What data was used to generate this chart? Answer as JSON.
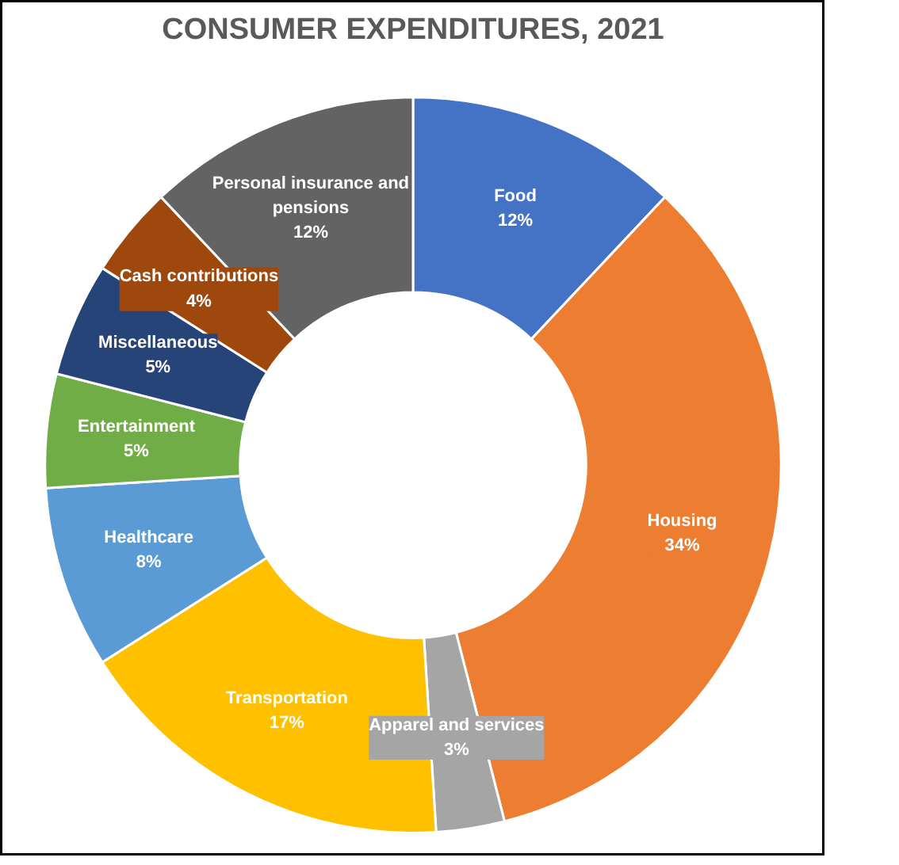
{
  "chart_data": {
    "type": "donut",
    "title": "CONSUMER EXPENDITURES, 2021",
    "categories": [
      "Food",
      "Housing",
      "Apparel and services",
      "Transportation",
      "Healthcare",
      "Entertainment",
      "Miscellaneous",
      "Cash contributions",
      "Personal insurance and pensions"
    ],
    "values": [
      12,
      34,
      3,
      17,
      8,
      5,
      5,
      4,
      12
    ],
    "value_labels": [
      "12%",
      "34%",
      "3%",
      "17%",
      "8%",
      "5%",
      "5%",
      "4%",
      "12%"
    ],
    "colors": [
      "#4472c4",
      "#ed7d31",
      "#a5a5a5",
      "#ffc000",
      "#5b9bd5",
      "#70ad47",
      "#264478",
      "#9e480e",
      "#636363"
    ],
    "legend": false
  }
}
